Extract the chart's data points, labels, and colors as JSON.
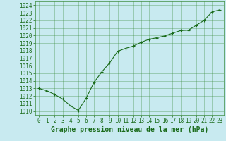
{
  "x": [
    0,
    1,
    2,
    3,
    4,
    5,
    6,
    7,
    8,
    9,
    10,
    11,
    12,
    13,
    14,
    15,
    16,
    17,
    18,
    19,
    20,
    21,
    22,
    23
  ],
  "y": [
    1013.0,
    1012.7,
    1012.2,
    1011.6,
    1010.7,
    1010.1,
    1011.7,
    1013.8,
    1015.2,
    1016.4,
    1017.9,
    1018.3,
    1018.6,
    1019.1,
    1019.5,
    1019.7,
    1019.95,
    1020.3,
    1020.65,
    1020.7,
    1021.35,
    1022.0,
    1023.1,
    1023.4
  ],
  "line_color": "#1a6b1a",
  "marker": "+",
  "marker_size": 3,
  "linewidth": 0.8,
  "bg_color": "#c8eaf0",
  "grid_color": "#3a8a3a",
  "xlabel": "Graphe pression niveau de la mer (hPa)",
  "xlabel_color": "#1a6b1a",
  "xlabel_fontsize": 7,
  "xtick_fontsize": 5.5,
  "ytick_fontsize": 5.5,
  "ylim": [
    1009.5,
    1024.5
  ],
  "xlim": [
    -0.5,
    23.5
  ],
  "yticks": [
    1010,
    1011,
    1012,
    1013,
    1014,
    1015,
    1016,
    1017,
    1018,
    1019,
    1020,
    1021,
    1022,
    1023,
    1024
  ],
  "xticks": [
    0,
    1,
    2,
    3,
    4,
    5,
    6,
    7,
    8,
    9,
    10,
    11,
    12,
    13,
    14,
    15,
    16,
    17,
    18,
    19,
    20,
    21,
    22,
    23
  ],
  "tick_color": "#1a6b1a",
  "xtick_labels": [
    "0",
    "1",
    "2",
    "3",
    "4",
    "5",
    "6",
    "7",
    "8",
    "9",
    "10",
    "11",
    "12",
    "13",
    "14",
    "15",
    "16",
    "17",
    "18",
    "19",
    "20",
    "21",
    "22",
    "23"
  ]
}
